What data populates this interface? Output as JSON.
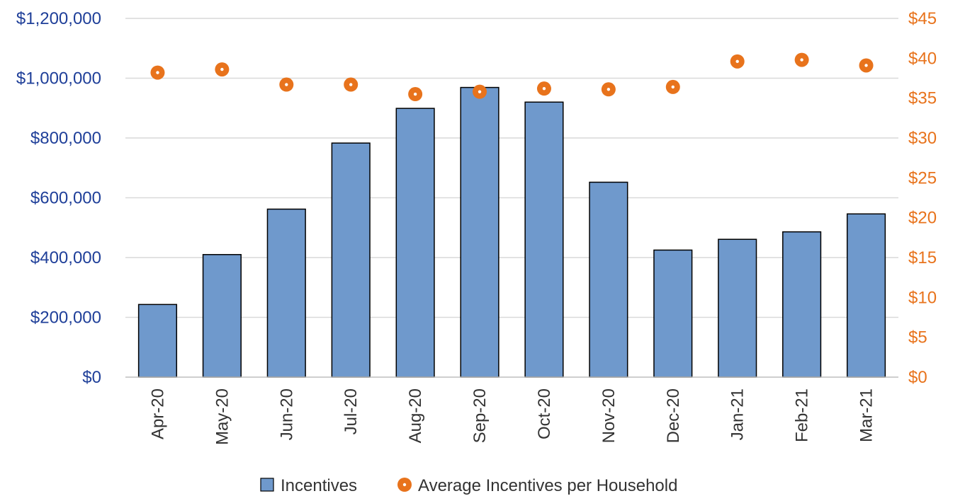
{
  "chart_data": {
    "type": "bar",
    "categories": [
      "Apr-20",
      "May-20",
      "Jun-20",
      "Jul-20",
      "Aug-20",
      "Sep-20",
      "Oct-20",
      "Nov-20",
      "Dec-20",
      "Jan-21",
      "Feb-21",
      "Mar-21"
    ],
    "series": [
      {
        "name": "Incentives",
        "type": "bar",
        "axis": "left",
        "values": [
          243000,
          410000,
          562000,
          783000,
          899000,
          969000,
          920000,
          652000,
          425000,
          461000,
          486000,
          546000
        ]
      },
      {
        "name": "Average Incentives per Household",
        "type": "scatter",
        "axis": "right",
        "values": [
          38.2,
          38.6,
          36.7,
          36.7,
          35.5,
          35.8,
          36.2,
          36.1,
          36.4,
          39.6,
          39.8,
          39.1
        ]
      }
    ],
    "y_left": {
      "ylim": [
        0,
        1200000
      ],
      "ticks": [
        0,
        200000,
        400000,
        600000,
        800000,
        1000000,
        1200000
      ],
      "tick_labels": [
        "$0",
        "$200,000",
        "$400,000",
        "$600,000",
        "$800,000",
        "$1,000,000",
        "$1,200,000"
      ]
    },
    "y_right": {
      "ylim": [
        0,
        45
      ],
      "ticks": [
        0,
        5,
        10,
        15,
        20,
        25,
        30,
        35,
        40,
        45
      ],
      "tick_labels": [
        "$0",
        "$5",
        "$10",
        "$15",
        "$20",
        "$25",
        "$30",
        "$35",
        "$40",
        "$45"
      ]
    },
    "legend_position": "bottom",
    "grid": true,
    "colors": {
      "bar_fill": "#6F99CC",
      "bar_stroke": "#000000",
      "marker": "#E8731C",
      "left_axis_text": "#1F3F99",
      "right_axis_text": "#E8731C",
      "gridline": "#D9D9D9"
    }
  }
}
